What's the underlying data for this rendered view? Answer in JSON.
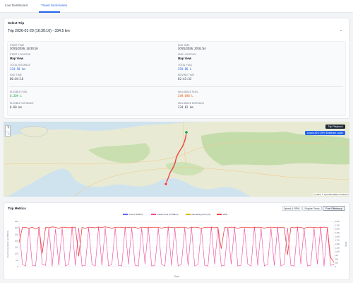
{
  "tabs": [
    {
      "label": "Live Dashboard",
      "active": false
    },
    {
      "label": "Travel Summaries",
      "active": true
    }
  ],
  "select_trip": {
    "title": "Select Trip",
    "value": "Trip 2026-01-20 (16:30:16) - 334.5 km"
  },
  "trip_details": {
    "start_time": {
      "label": "START TIME",
      "value": "20/01/2026, 16:30:16"
    },
    "end_time": {
      "label": "END TIME",
      "value": "20/01/2026, 20:51:54"
    },
    "start_location": {
      "label": "START LOCATION",
      "value": "Map View"
    },
    "end_location": {
      "label": "END LOCATION",
      "value": "Map View"
    },
    "total_distance": {
      "label": "TOTAL DISTANCE",
      "value": "334.50 km"
    },
    "total_fuel": {
      "label": "TOTAL FUEL",
      "value": "258.86 L"
    },
    "idle_time": {
      "label": "IDLE TIME",
      "value": "00:04:16"
    },
    "moving_time": {
      "label": "MOVING TIME",
      "value": "02:43:33"
    },
    "eligible_fuel": {
      "label": "ELIGIBLE FUEL",
      "value": "0.209 L"
    },
    "ineligible_fuel": {
      "label": "INELIGIBLE FUEL",
      "value": "249.690 L"
    },
    "eligible_distance": {
      "label": "ELIGIBLE DISTANCE",
      "value": "0.60 km"
    },
    "ineligible_distance": {
      "label": "INELIGIBLE DISTANCE",
      "value": "334.02 km"
    }
  },
  "map": {
    "trip_playback_label": "Trip Playback",
    "gps_evidence_label": "Leave ATO GPS Evidence Layer",
    "attribution": "Leaflet | © OpenStreetMap contributors",
    "zoom_in": "+",
    "zoom_out": "−"
  },
  "metrics": {
    "title": "Trip Metrics",
    "buttons": [
      {
        "label": "Speed & RPM",
        "active": false
      },
      {
        "label": "Engine Temp",
        "active": false
      },
      {
        "label": "Fuel Efficiency",
        "active": true
      }
    ],
    "legend": [
      {
        "name": "Fuel (L/100km)",
        "color": "#6366f1"
      },
      {
        "name": "Instant Fuel (L/100km)",
        "color": "#ec4899"
      },
      {
        "name": "Remaining Fuel (%)",
        "color": "#eab308"
      },
      {
        "name": "RPM",
        "color": "#ef4444"
      }
    ],
    "y_left_label": "Fuel Consumption (L/100km)",
    "y_right_label": "RPM",
    "x_label": "Time"
  },
  "chart_data": {
    "type": "line",
    "x_label": "Time",
    "y_left": {
      "label": "Fuel Consumption (L/100km)",
      "range": [
        0,
        350
      ],
      "ticks": [
        0,
        50,
        100,
        150,
        200,
        250,
        300,
        350
      ]
    },
    "y_right": {
      "label": "RPM",
      "range": [
        0,
        3000
      ],
      "ticks": [
        0,
        250,
        500,
        750,
        1000,
        1250,
        1500,
        1750,
        2000,
        2250,
        2500,
        2750,
        3000
      ]
    },
    "series": [
      {
        "name": "RPM",
        "axis": "right",
        "color": "#ef4444",
        "values": [
          1600,
          2600,
          2600,
          2550,
          2620,
          2500,
          2620,
          900,
          2600,
          2580,
          2640,
          2600,
          2550,
          2620,
          2600,
          2580,
          2600,
          2620,
          700,
          2600,
          2550,
          2620,
          2600,
          2580,
          2620,
          2600,
          2640,
          2600,
          2550,
          2600,
          2620,
          2600,
          2580,
          2600,
          2620,
          2600,
          2550,
          2620,
          2600,
          2580,
          2600,
          2620,
          2600,
          2560,
          2600,
          2620,
          2600,
          2580,
          2600,
          2620,
          2600,
          2560,
          2600,
          2620,
          2600,
          2550,
          2600,
          2620,
          2600,
          2580,
          2600,
          1200,
          2600,
          2580,
          2620,
          2600,
          2550,
          2600,
          2620,
          2600,
          2580,
          2600,
          2620,
          2600,
          2560,
          2600,
          2620,
          2600,
          2580,
          2600,
          2620,
          800,
          2600,
          2580,
          2620,
          2600,
          2550,
          2600,
          2620,
          2600,
          2580,
          2600,
          2620,
          2600,
          600,
          300
        ]
      },
      {
        "name": "Instant Fuel (L/100km)",
        "axis": "left",
        "color": "#ec4899",
        "values": [
          310,
          20,
          5,
          300,
          10,
          5,
          310,
          20,
          10,
          300,
          5,
          290,
          10,
          300,
          5,
          20,
          310,
          10,
          300,
          5,
          10,
          300,
          20,
          5,
          310,
          10,
          300,
          5,
          20,
          300,
          10,
          5,
          310,
          20,
          300,
          10,
          5,
          300,
          20,
          310,
          5,
          10,
          300,
          20,
          5,
          310,
          10,
          300,
          5,
          20,
          300,
          10,
          310,
          5,
          20,
          300,
          10,
          5,
          310,
          20,
          300,
          5,
          10,
          300,
          20,
          310,
          5,
          10,
          300,
          20,
          5,
          310,
          10,
          300,
          5,
          20,
          300,
          10,
          310,
          5,
          20,
          300,
          10,
          5,
          310,
          20,
          300,
          5,
          10,
          300,
          20,
          310,
          5,
          300,
          10,
          20
        ]
      }
    ]
  }
}
